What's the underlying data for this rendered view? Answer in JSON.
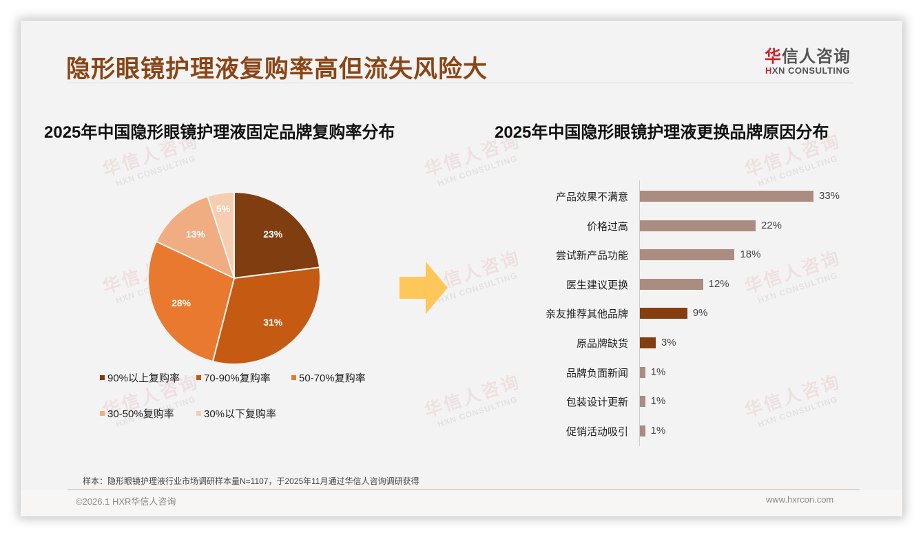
{
  "header": {
    "title": "隐形眼镜护理液复购率高但流失风险大",
    "logo_cn_accent": "华",
    "logo_cn_rest": "信人咨询",
    "logo_en_accent": "H",
    "logo_en_rest": "XN CONSULTING"
  },
  "watermark": {
    "cn": "华信人咨询",
    "en": "HXN CONSULTING"
  },
  "left_chart": {
    "title": "2025年中国隐形眼镜护理液固定品牌复购率分布"
  },
  "right_chart": {
    "title": "2025年中国隐形眼镜护理液更换品牌原因分布"
  },
  "chart_data": [
    {
      "type": "pie",
      "title": "2025年中国隐形眼镜护理液固定品牌复购率分布",
      "categories": [
        "90%以上复购率",
        "70-90%复购率",
        "50-70%复购率",
        "30-50%复购率",
        "30%以下复购率"
      ],
      "values": [
        23,
        31,
        28,
        13,
        5
      ],
      "labels": [
        "23%",
        "31%",
        "28%",
        "13%",
        "5%"
      ],
      "colors": [
        "#7f3d10",
        "#c55a12",
        "#e8792e",
        "#f0ad81",
        "#f7cdb1"
      ],
      "legend_position": "bottom"
    },
    {
      "type": "bar",
      "orientation": "horizontal",
      "title": "2025年中国隐形眼镜护理液更换品牌原因分布",
      "categories": [
        "产品效果不满意",
        "价格过高",
        "尝试新产品功能",
        "医生建议更换",
        "亲友推荐其他品牌",
        "原品牌缺货",
        "品牌负面新闻",
        "包装设计更新",
        "促销活动吸引"
      ],
      "values": [
        33,
        22,
        18,
        12,
        9,
        3,
        1,
        1,
        1
      ],
      "labels": [
        "33%",
        "22%",
        "18%",
        "12%",
        "9%",
        "3%",
        "1%",
        "1%",
        "1%"
      ],
      "colors": [
        "#ab8c80",
        "#ab8c80",
        "#ab8c80",
        "#ab8c80",
        "#843e10",
        "#843e10",
        "#ab8c80",
        "#ab8c80",
        "#ab8c80"
      ],
      "grid": false,
      "xlabel": "",
      "ylabel": ""
    }
  ],
  "footer": {
    "note": "样本：隐形眼镜护理液行业市场调研样本量N=1107，于2025年11月通过华信人咨询调研获得",
    "copyright": "©2026.1 HXR华信人咨询",
    "website": "www.hxrcon.com"
  }
}
